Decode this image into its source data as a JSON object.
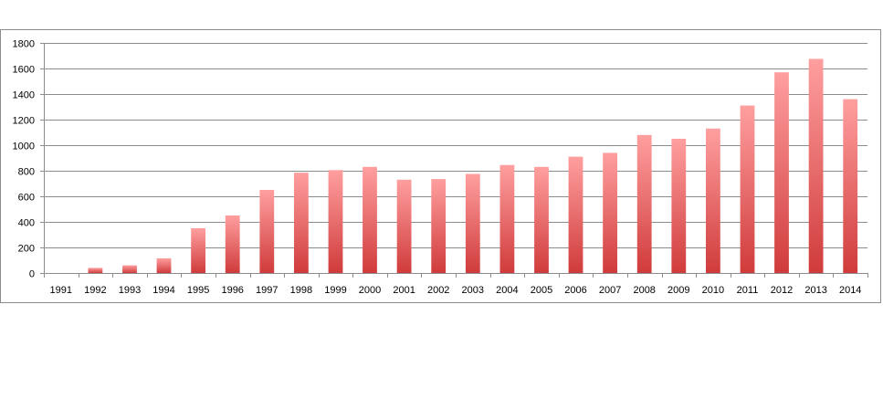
{
  "chart_data": {
    "type": "bar",
    "title": "",
    "xlabel": "",
    "ylabel": "",
    "ylim": [
      0,
      1800
    ],
    "yticks": [
      0,
      200,
      400,
      600,
      800,
      1000,
      1200,
      1400,
      1600,
      1800
    ],
    "ytick_labels": [
      "0",
      "200",
      "400",
      "600",
      "800",
      "1000",
      "1200",
      "1400",
      "1600",
      "1800"
    ],
    "grid": true,
    "legend": "none",
    "categories": [
      "1991",
      "1992",
      "1993",
      "1994",
      "1995",
      "1996",
      "1997",
      "1998",
      "1999",
      "2000",
      "2001",
      "2002",
      "2003",
      "2004",
      "2005",
      "2006",
      "2007",
      "2008",
      "2009",
      "2010",
      "2011",
      "2012",
      "2013",
      "2014"
    ],
    "values": [
      0,
      40,
      60,
      115,
      350,
      450,
      650,
      785,
      805,
      830,
      730,
      735,
      775,
      845,
      830,
      910,
      940,
      1080,
      1050,
      1130,
      1310,
      1570,
      1675,
      1360
    ],
    "colors": {
      "bar_top": "#ff9f9f",
      "bar_bottom": "#d03b3b",
      "grid": "#8c8c8c",
      "axis": "#8c8c8c"
    }
  }
}
